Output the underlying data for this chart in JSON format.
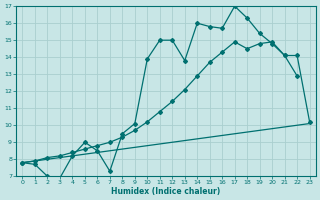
{
  "title": "",
  "xlabel": "Humidex (Indice chaleur)",
  "xlim": [
    -0.5,
    23.5
  ],
  "ylim": [
    7,
    17
  ],
  "yticks": [
    7,
    8,
    9,
    10,
    11,
    12,
    13,
    14,
    15,
    16,
    17
  ],
  "xticks": [
    0,
    1,
    2,
    3,
    4,
    5,
    6,
    7,
    8,
    9,
    10,
    11,
    12,
    13,
    14,
    15,
    16,
    17,
    18,
    19,
    20,
    21,
    22,
    23
  ],
  "background_color": "#c8e6e6",
  "grid_color": "#aacfcf",
  "line_color": "#007070",
  "curve1_x": [
    0,
    1,
    2,
    3,
    4,
    5,
    6,
    7,
    8,
    9,
    10,
    11,
    12,
    13,
    14,
    15,
    16,
    17,
    18,
    19,
    20,
    21,
    22
  ],
  "curve1_y": [
    7.8,
    7.7,
    7.0,
    6.9,
    8.2,
    9.0,
    8.5,
    7.3,
    9.5,
    10.1,
    13.9,
    15.0,
    15.0,
    13.8,
    16.0,
    15.8,
    15.7,
    17.0,
    16.3,
    15.4,
    14.8,
    14.1,
    12.9
  ],
  "curve2_x": [
    0,
    1,
    2,
    3,
    4,
    5,
    6,
    7,
    8,
    9,
    10,
    11,
    12,
    13,
    14,
    15,
    16,
    17,
    18,
    19,
    20,
    21,
    22,
    23
  ],
  "curve2_y": [
    7.8,
    7.9,
    8.1,
    8.2,
    8.4,
    8.6,
    8.8,
    9.0,
    9.3,
    9.7,
    10.2,
    10.8,
    11.4,
    12.1,
    12.9,
    13.7,
    14.3,
    14.9,
    14.5,
    14.8,
    14.9,
    14.1,
    14.1,
    10.2
  ],
  "curve3_x": [
    0,
    23
  ],
  "curve3_y": [
    7.8,
    10.1
  ]
}
